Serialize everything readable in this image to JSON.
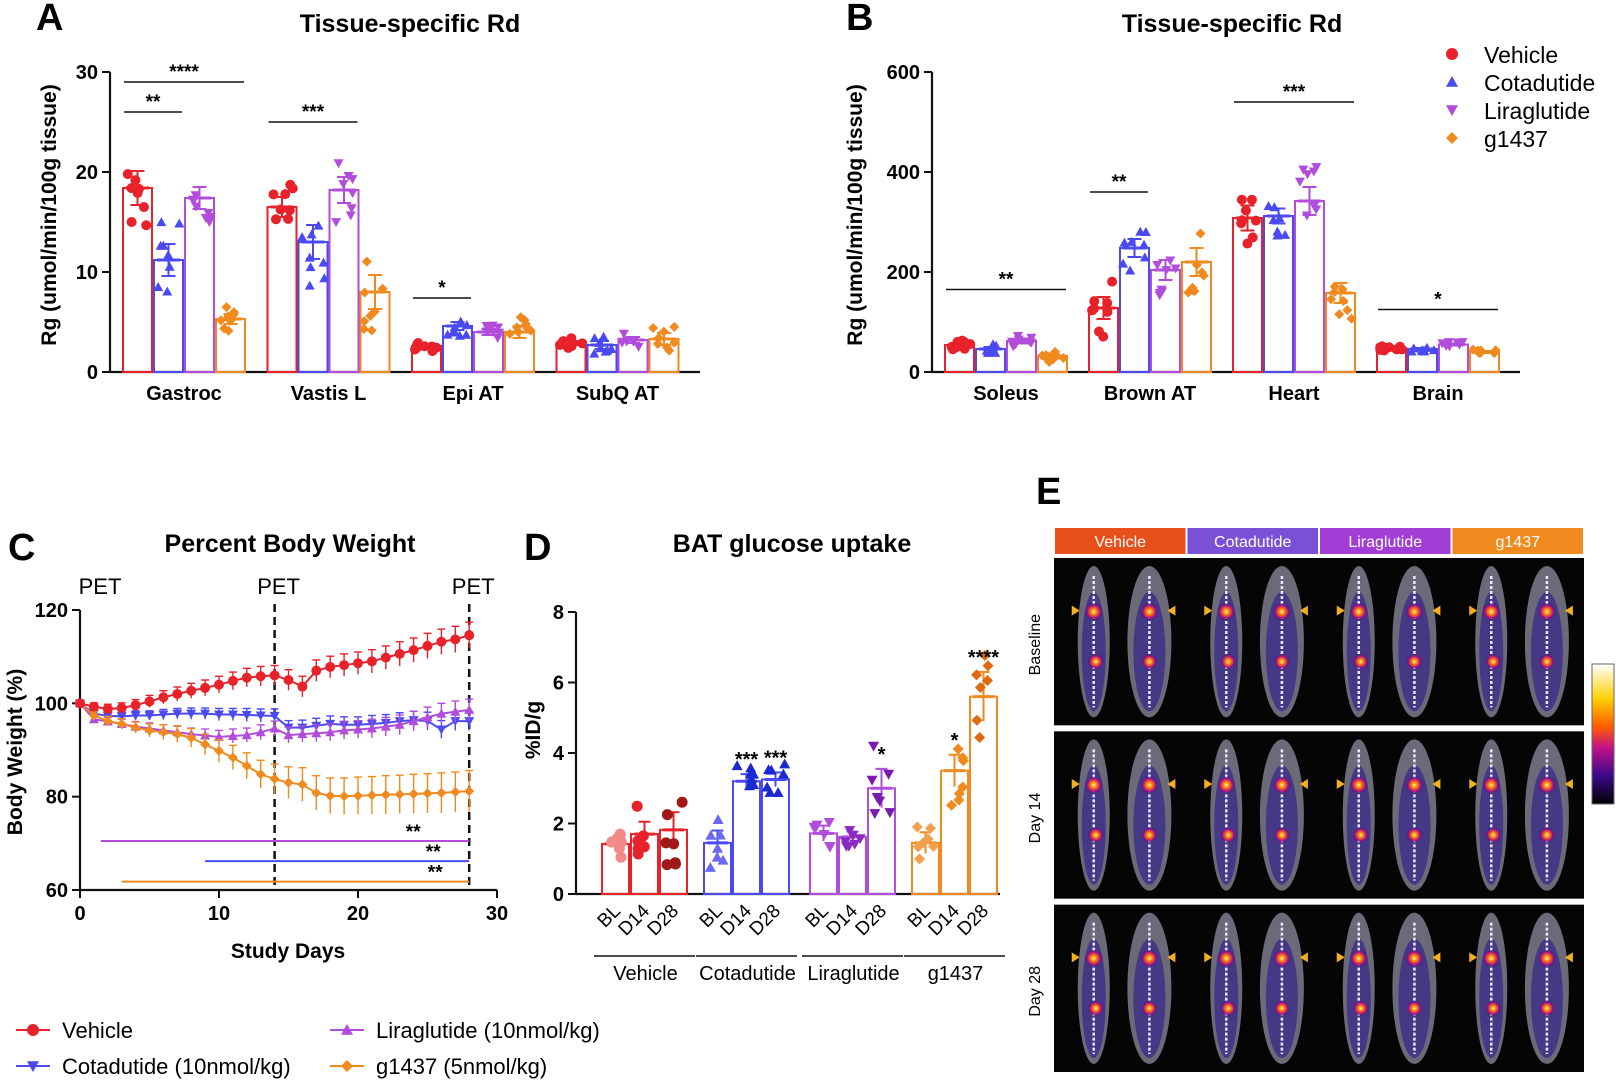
{
  "colors": {
    "vehicle": "#e8222b",
    "cotadutide": "#4a4af0",
    "liraglutide": "#b24cdb",
    "g1437": "#f08a1e",
    "vehicle_dark": "#a01818",
    "cotadutide_dark": "#1a2ad0",
    "liraglutide_dark": "#7a1ab0",
    "g1437_dark": "#e06a10"
  },
  "panel_labels": [
    "A",
    "B",
    "C",
    "D",
    "E"
  ],
  "legend_top": [
    "Vehicle",
    "Cotadutide",
    "Liraglutide",
    "g1437"
  ],
  "legend_bottom": [
    "Vehicle",
    "Liraglutide (10nmol/kg)",
    "Cotadutide (10nmol/kg)",
    "g1437 (5nmol/kg)"
  ],
  "chart_data": [
    {
      "panel": "A",
      "type": "bar",
      "title": "Tissue-specific Rd",
      "ylabel": "Rg (umol/min/100g tissue)",
      "ylim": [
        0,
        30
      ],
      "yticks": [
        "0",
        "10",
        "20",
        "30"
      ],
      "categories": [
        "Gastroc",
        "Vastis L",
        "Epi AT",
        "SubQ AT"
      ],
      "series": [
        {
          "name": "Vehicle",
          "values": [
            18.4,
            16.5,
            2.6,
            2.9
          ],
          "sem": [
            1.7,
            1.0,
            0.2,
            0.2
          ]
        },
        {
          "name": "Cotadutide",
          "values": [
            11.2,
            13.0,
            4.6,
            2.7
          ],
          "sem": [
            1.6,
            1.7,
            0.4,
            0.4
          ]
        },
        {
          "name": "Liraglutide",
          "values": [
            17.4,
            18.2,
            4.0,
            3.2
          ],
          "sem": [
            1.1,
            1.3,
            0.3,
            0.3
          ]
        },
        {
          "name": "g1437",
          "values": [
            5.3,
            8.0,
            4.0,
            3.3
          ],
          "sem": [
            0.5,
            1.7,
            0.6,
            0.6
          ]
        }
      ],
      "significance": [
        {
          "label": "**",
          "category": "Gastroc",
          "from": "Vehicle",
          "to": "Cotadutide",
          "y": 26
        },
        {
          "label": "****",
          "category": "Gastroc",
          "from": "Vehicle",
          "to": "g1437",
          "y": 29
        },
        {
          "label": "***",
          "category": "Vastis L",
          "from": "Vehicle",
          "to": "Liraglutide",
          "y": 25
        },
        {
          "label": "*",
          "category": "Epi AT",
          "from": "Vehicle",
          "to": "Cotadutide",
          "y": 7.4
        }
      ]
    },
    {
      "panel": "B",
      "type": "bar",
      "title": "Tissue-specific Rd",
      "ylabel": "Rg (umol/min/100g tissue)",
      "ylim": [
        0,
        600
      ],
      "yticks": [
        "0",
        "200",
        "400",
        "600"
      ],
      "categories": [
        "Soleus",
        "Brown AT",
        "Heart",
        "Brain"
      ],
      "series": [
        {
          "name": "Vehicle",
          "values": [
            54,
            128,
            308,
            48
          ],
          "sem": [
            4,
            22,
            25,
            2
          ]
        },
        {
          "name": "Cotadutide",
          "values": [
            46,
            248,
            312,
            46
          ],
          "sem": [
            4,
            18,
            15,
            2
          ]
        },
        {
          "name": "Liraglutide",
          "values": [
            62,
            204,
            342,
            55
          ],
          "sem": [
            5,
            20,
            28,
            2
          ]
        },
        {
          "name": "g1437",
          "values": [
            32,
            220,
            158,
            40
          ],
          "sem": [
            5,
            28,
            20,
            2
          ]
        }
      ],
      "significance": [
        {
          "label": "**",
          "category": "Soleus",
          "from": "Vehicle",
          "to": "g1437",
          "y": 165
        },
        {
          "label": "**",
          "category": "Brown AT",
          "from": "Vehicle",
          "to": "Cotadutide",
          "y": 360
        },
        {
          "label": "***",
          "category": "Heart",
          "from": "Vehicle",
          "to": "g1437",
          "y": 540
        },
        {
          "label": "*",
          "category": "Brain",
          "from": "Vehicle",
          "to": "g1437",
          "y": 125
        }
      ]
    },
    {
      "panel": "C",
      "type": "line",
      "title": "Percent Body Weight",
      "xlabel": "Study Days",
      "ylabel": "Body Weight (%)",
      "xlim": [
        0,
        30
      ],
      "ylim": [
        60,
        120
      ],
      "xticks": [
        "0",
        "10",
        "20",
        "30"
      ],
      "yticks": [
        "60",
        "80",
        "100",
        "120"
      ],
      "pet_days": [
        0,
        14,
        28
      ],
      "pet_label": "PET",
      "x": [
        0,
        1,
        2,
        3,
        4,
        5,
        6,
        7,
        8,
        9,
        10,
        11,
        12,
        13,
        14,
        15,
        16,
        17,
        18,
        19,
        20,
        21,
        22,
        23,
        24,
        25,
        26,
        27,
        28
      ],
      "series": [
        {
          "name": "Vehicle",
          "values": [
            100,
            99.3,
            98.8,
            99,
            99.6,
            100.4,
            101.3,
            102,
            102.7,
            103.3,
            104,
            104.8,
            105.5,
            105.8,
            106,
            105,
            103.6,
            107,
            107.8,
            108.2,
            108.6,
            109,
            109.8,
            110.6,
            111.4,
            112.3,
            113.2,
            113.7,
            114.6
          ],
          "sem": [
            0,
            0.8,
            1,
            1.1,
            1.2,
            1.3,
            1.4,
            1.5,
            1.6,
            1.7,
            1.8,
            1.9,
            2,
            2.1,
            2.1,
            2.2,
            2.2,
            2.3,
            2.3,
            2.4,
            2.4,
            2.5,
            2.5,
            2.6,
            2.6,
            2.7,
            2.7,
            2.8,
            2.8
          ]
        },
        {
          "name": "Cotadutide (10nmol/kg)",
          "values": [
            100,
            97.8,
            97.3,
            97.2,
            97.4,
            97.4,
            97.6,
            97.8,
            97.8,
            97.8,
            97.6,
            97.6,
            97.5,
            97.4,
            97.3,
            94.8,
            94.8,
            95.2,
            95.6,
            95.4,
            95.4,
            95.6,
            95.8,
            96.2,
            96.4,
            96.2,
            94.4,
            96.2,
            96.2
          ],
          "sem": [
            0,
            0.6,
            0.8,
            0.9,
            1,
            1,
            1.1,
            1.1,
            1.2,
            1.2,
            1.3,
            1.3,
            1.4,
            1.4,
            1.5,
            1.5,
            1.6,
            1.6,
            1.7,
            1.7,
            1.7,
            1.8,
            1.8,
            1.8,
            1.9,
            1.9,
            1.9,
            2,
            2
          ]
        },
        {
          "name": "Liraglutide (10nmol/kg)",
          "values": [
            100,
            96.6,
            96.1,
            95.6,
            95.0,
            94.6,
            94.2,
            93.8,
            93.4,
            93.1,
            92.8,
            93,
            93.2,
            93.8,
            94.6,
            93.2,
            93.4,
            93.6,
            93.8,
            94.2,
            94.4,
            94.6,
            95,
            95.4,
            96.2,
            97,
            97.8,
            98.2,
            98.6
          ],
          "sem": [
            0,
            0.8,
            0.9,
            1,
            1.1,
            1.2,
            1.2,
            1.3,
            1.3,
            1.4,
            1.4,
            1.5,
            1.5,
            1.6,
            1.6,
            1.7,
            1.7,
            1.8,
            1.8,
            1.9,
            1.9,
            2,
            2,
            2.1,
            2.1,
            2.2,
            2.2,
            2.3,
            2.3
          ]
        },
        {
          "name": "g1437 (5nmol/kg)",
          "values": [
            100,
            97.4,
            96.2,
            95.6,
            94.8,
            94.2,
            93.8,
            93.4,
            92.6,
            91.2,
            89.8,
            88.4,
            86.6,
            84.8,
            83.8,
            83,
            82.6,
            80.8,
            80.2,
            80.1,
            80.2,
            80.3,
            80.4,
            80.5,
            80.6,
            80.7,
            80.8,
            81.0,
            81.2
          ],
          "sem": [
            0,
            0.8,
            1,
            1.1,
            1.2,
            1.4,
            1.6,
            1.8,
            2,
            2.2,
            2.4,
            2.6,
            2.8,
            3,
            3.2,
            3.4,
            3.6,
            3.7,
            3.8,
            3.9,
            4,
            4,
            4.1,
            4.1,
            4.2,
            4.2,
            4.3,
            4.3,
            4.4
          ]
        }
      ],
      "significance": [
        {
          "label": "**",
          "series": "Liraglutide (10nmol/kg)",
          "x_from": 1.5,
          "x_to": 28,
          "y": 70.5
        },
        {
          "label": "**",
          "series": "Cotadutide (10nmol/kg)",
          "x_from": 9,
          "x_to": 28,
          "y": 66.2
        },
        {
          "label": "**",
          "series": "g1437 (5nmol/kg)",
          "x_from": 3,
          "x_to": 28,
          "y": 61.8
        }
      ]
    },
    {
      "panel": "D",
      "type": "bar",
      "title": "BAT glucose uptake",
      "ylabel": "%ID/g",
      "ylim": [
        0,
        8
      ],
      "yticks": [
        "0",
        "2",
        "4",
        "6",
        "8"
      ],
      "groups": [
        "Vehicle",
        "Cotadutide",
        "Liraglutide",
        "g1437"
      ],
      "categories": [
        "BL",
        "D14",
        "D28"
      ],
      "series": [
        {
          "name": "Vehicle",
          "values": [
            1.42,
            1.7,
            1.82
          ],
          "sem": [
            0.18,
            0.35,
            0.5
          ],
          "sig": [
            "",
            "",
            ""
          ]
        },
        {
          "name": "Cotadutide",
          "values": [
            1.45,
            3.2,
            3.25
          ],
          "sem": [
            0.35,
            0.2,
            0.2
          ],
          "sig": [
            "",
            "***",
            "***"
          ]
        },
        {
          "name": "Liraglutide",
          "values": [
            1.72,
            1.62,
            3.0
          ],
          "sem": [
            0.22,
            0.15,
            0.55
          ],
          "sig": [
            "",
            "",
            "*"
          ]
        },
        {
          "name": "g1437",
          "values": [
            1.45,
            3.5,
            5.6
          ],
          "sem": [
            0.3,
            0.45,
            0.7
          ],
          "sig": [
            "",
            "*",
            "****"
          ]
        }
      ]
    }
  ],
  "panel_e": {
    "groups": [
      "Vehicle",
      "Cotadutide",
      "Liraglutide",
      "g1437"
    ],
    "group_colors": [
      "#e8501a",
      "#7b4fd6",
      "#a23dd6",
      "#f08a1e"
    ],
    "rows": [
      "Baseline",
      "Day 14",
      "Day 28"
    ]
  }
}
